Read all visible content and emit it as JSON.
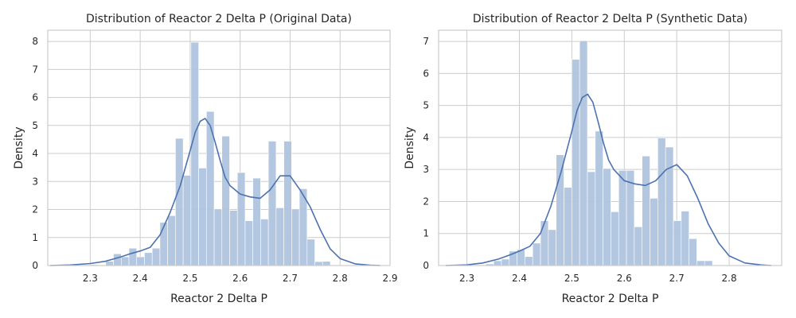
{
  "chart_data": [
    {
      "type": "bar",
      "subtype": "histogram-with-kde",
      "title": "Distribution of Reactor 2 Delta P (Original Data)",
      "xlabel": "Reactor 2 Delta P",
      "ylabel": "Density",
      "xlim": [
        2.215,
        2.9
      ],
      "ylim": [
        0,
        8.4
      ],
      "xticks": [
        2.3,
        2.4,
        2.5,
        2.6,
        2.7,
        2.8,
        2.9
      ],
      "xtick_labels": [
        "2.3",
        "2.4",
        "2.5",
        "2.6",
        "2.7",
        "2.8",
        "2.9"
      ],
      "yticks": [
        0,
        1,
        2,
        3,
        4,
        5,
        6,
        7,
        8
      ],
      "ytick_labels": [
        "0",
        "1",
        "2",
        "3",
        "4",
        "5",
        "6",
        "7",
        "8"
      ],
      "grid": true,
      "bar_color": "#b0c4de",
      "line_color": "#4c72b0",
      "bins": {
        "start": 2.3,
        "width": 0.0155,
        "values": [
          0.03,
          0.0,
          0.15,
          0.42,
          0.31,
          0.62,
          0.31,
          0.46,
          0.62,
          1.54,
          1.78,
          4.54,
          3.22,
          7.97,
          3.48,
          5.5,
          2.02,
          4.62,
          1.97,
          3.32,
          1.6,
          3.12,
          1.66,
          4.44,
          2.06,
          4.44,
          2.02,
          2.74,
          0.94,
          0.14,
          0.15
        ]
      },
      "kde": {
        "x": [
          2.22,
          2.26,
          2.3,
          2.33,
          2.36,
          2.38,
          2.4,
          2.42,
          2.44,
          2.46,
          2.48,
          2.5,
          2.51,
          2.52,
          2.53,
          2.54,
          2.55,
          2.56,
          2.57,
          2.58,
          2.6,
          2.62,
          2.64,
          2.66,
          2.68,
          2.7,
          2.72,
          2.74,
          2.76,
          2.78,
          2.8,
          2.83,
          2.86,
          2.88
        ],
        "y": [
          0.0,
          0.02,
          0.07,
          0.15,
          0.3,
          0.42,
          0.52,
          0.65,
          1.1,
          1.9,
          2.85,
          4.1,
          4.75,
          5.15,
          5.25,
          5.0,
          4.4,
          3.75,
          3.15,
          2.85,
          2.55,
          2.45,
          2.4,
          2.7,
          3.2,
          3.2,
          2.7,
          2.1,
          1.3,
          0.6,
          0.25,
          0.06,
          0.01,
          0.0
        ]
      }
    },
    {
      "type": "bar",
      "subtype": "histogram-with-kde",
      "title": "Distribution of Reactor 2 Delta P (Synthetic Data)",
      "xlabel": "Reactor 2 Delta P",
      "ylabel": "Density",
      "xlim": [
        2.246,
        2.9
      ],
      "ylim": [
        0,
        7.35
      ],
      "xticks": [
        2.3,
        2.4,
        2.5,
        2.6,
        2.7,
        2.8
      ],
      "xtick_labels": [
        "2.3",
        "2.4",
        "2.5",
        "2.6",
        "2.7",
        "2.8"
      ],
      "yticks": [
        0,
        1,
        2,
        3,
        4,
        5,
        6,
        7
      ],
      "ytick_labels": [
        "0",
        "1",
        "2",
        "3",
        "4",
        "5",
        "6",
        "7"
      ],
      "grid": true,
      "bar_color": "#b0c4de",
      "line_color": "#4c72b0",
      "bins": {
        "start": 2.336,
        "width": 0.0149,
        "values": [
          0.05,
          0.15,
          0.2,
          0.45,
          0.5,
          0.28,
          0.7,
          1.4,
          1.12,
          3.46,
          2.44,
          6.44,
          7.02,
          2.93,
          4.2,
          3.03,
          1.68,
          2.97,
          2.97,
          1.21,
          3.42,
          2.1,
          3.98,
          3.7,
          1.4,
          1.7,
          0.84,
          0.15,
          0.15
        ]
      },
      "kde": {
        "x": [
          2.26,
          2.3,
          2.33,
          2.36,
          2.38,
          2.4,
          2.42,
          2.44,
          2.46,
          2.48,
          2.5,
          2.51,
          2.52,
          2.53,
          2.54,
          2.55,
          2.56,
          2.57,
          2.58,
          2.6,
          2.62,
          2.64,
          2.66,
          2.68,
          2.7,
          2.72,
          2.74,
          2.76,
          2.78,
          2.8,
          2.83,
          2.86,
          2.88
        ],
        "y": [
          0.0,
          0.02,
          0.08,
          0.2,
          0.32,
          0.45,
          0.6,
          1.0,
          1.85,
          2.95,
          4.2,
          4.85,
          5.25,
          5.35,
          5.1,
          4.5,
          3.85,
          3.3,
          3.0,
          2.65,
          2.55,
          2.5,
          2.65,
          3.0,
          3.15,
          2.8,
          2.1,
          1.3,
          0.7,
          0.3,
          0.08,
          0.02,
          0.0
        ]
      }
    }
  ]
}
